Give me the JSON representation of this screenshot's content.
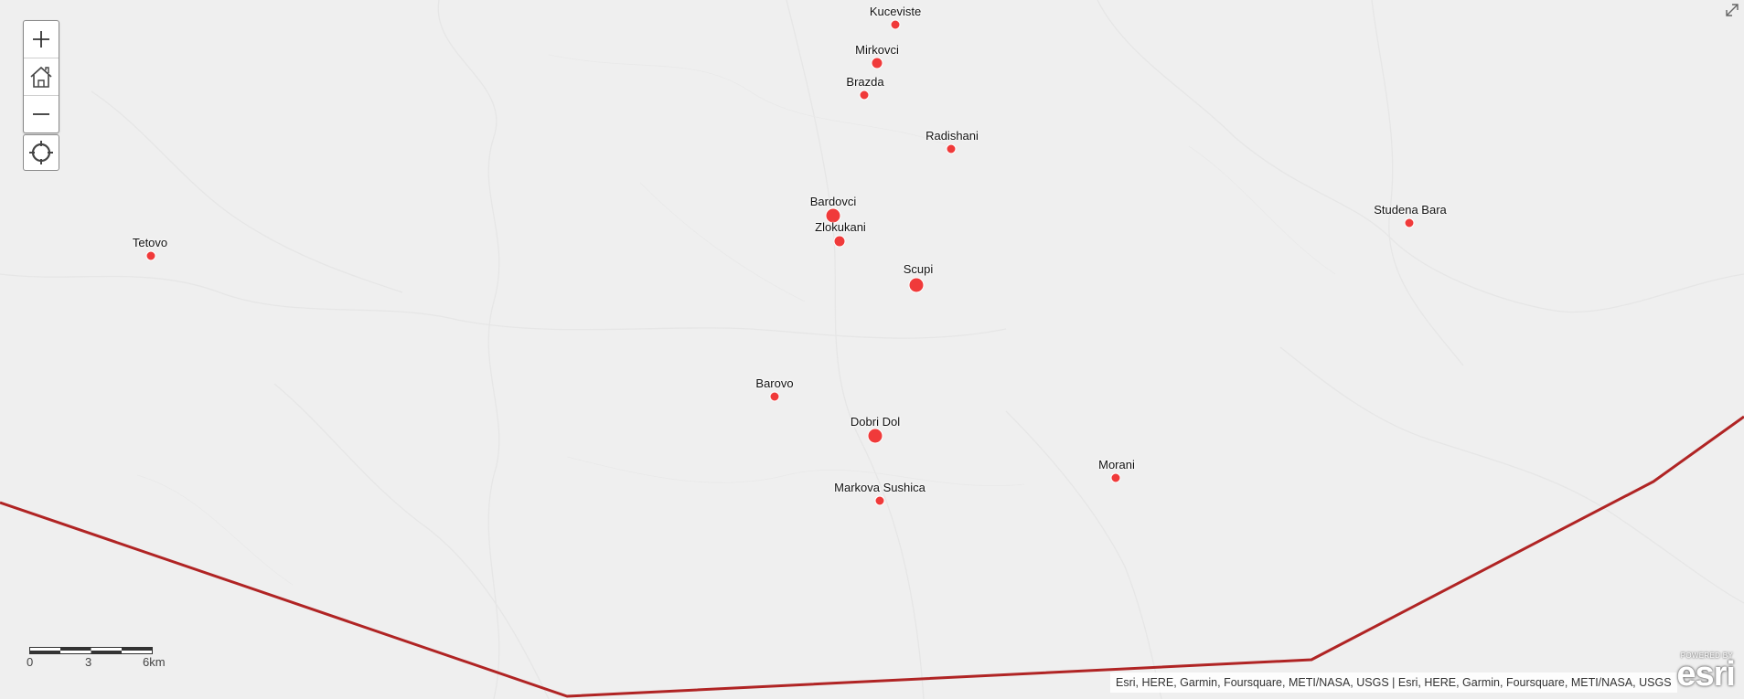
{
  "map": {
    "controls": {
      "zoom_in": "zoom-in",
      "home": "home",
      "zoom_out": "zoom-out",
      "locate": "locate"
    },
    "places": [
      {
        "name": "Kuceviste",
        "size": "small"
      },
      {
        "name": "Mirkovci",
        "size": "medium"
      },
      {
        "name": "Brazda",
        "size": "small"
      },
      {
        "name": "Radishani",
        "size": "small"
      },
      {
        "name": "Bardovci",
        "size": "large"
      },
      {
        "name": "Zlokukani",
        "size": "medium"
      },
      {
        "name": "Scupi",
        "size": "large"
      },
      {
        "name": "Studena Bara",
        "size": "small"
      },
      {
        "name": "Tetovo",
        "size": "small"
      },
      {
        "name": "Barovo",
        "size": "small"
      },
      {
        "name": "Dobri Dol",
        "size": "large"
      },
      {
        "name": "Morani",
        "size": "small"
      },
      {
        "name": "Markova Sushica",
        "size": "small"
      }
    ],
    "marker_color": "#f03a3a",
    "boundary_color": "#b02424",
    "scalebar": {
      "labels": [
        "0",
        "3",
        "6km"
      ]
    },
    "attribution": "Esri, HERE, Garmin, Foursquare, METI/NASA, USGS | Esri, HERE, Garmin, Foursquare, METI/NASA, USGS",
    "logo": {
      "top_text": "POWERED BY",
      "brand": "esri"
    }
  }
}
